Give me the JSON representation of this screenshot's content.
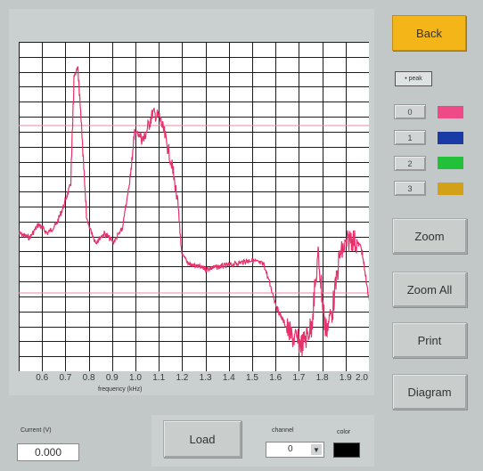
{
  "plot": {
    "x_ticks": [
      "",
      "0.6",
      "0.7",
      "0.8",
      "0.9",
      "1.0",
      "1.1",
      "1.2",
      "1.3",
      "1.4",
      "1.5",
      "1.6",
      "1.7",
      "1.8",
      "1.9",
      "2.0"
    ],
    "x_label": "frequency (kHz)",
    "trace_color": "#e8306a",
    "markers_color": "#e88aa8"
  },
  "buttons": {
    "back": "Back",
    "zoom": "Zoom",
    "zoom_all": "Zoom All",
    "print": "Print",
    "diagram": "Diagram",
    "load": "Load"
  },
  "peak": {
    "label": "• peak"
  },
  "channels": [
    {
      "label": "0",
      "color": "#ee4a88"
    },
    {
      "label": "1",
      "color": "#1a3aa5"
    },
    {
      "label": "2",
      "color": "#21c23a"
    },
    {
      "label": "3",
      "color": "#d3a117"
    }
  ],
  "current": {
    "label": "Current (V)",
    "value": "0.000"
  },
  "channel_select": {
    "label": "channel",
    "value": "0"
  },
  "color_picker": {
    "label": "color",
    "value": "#000000"
  }
}
